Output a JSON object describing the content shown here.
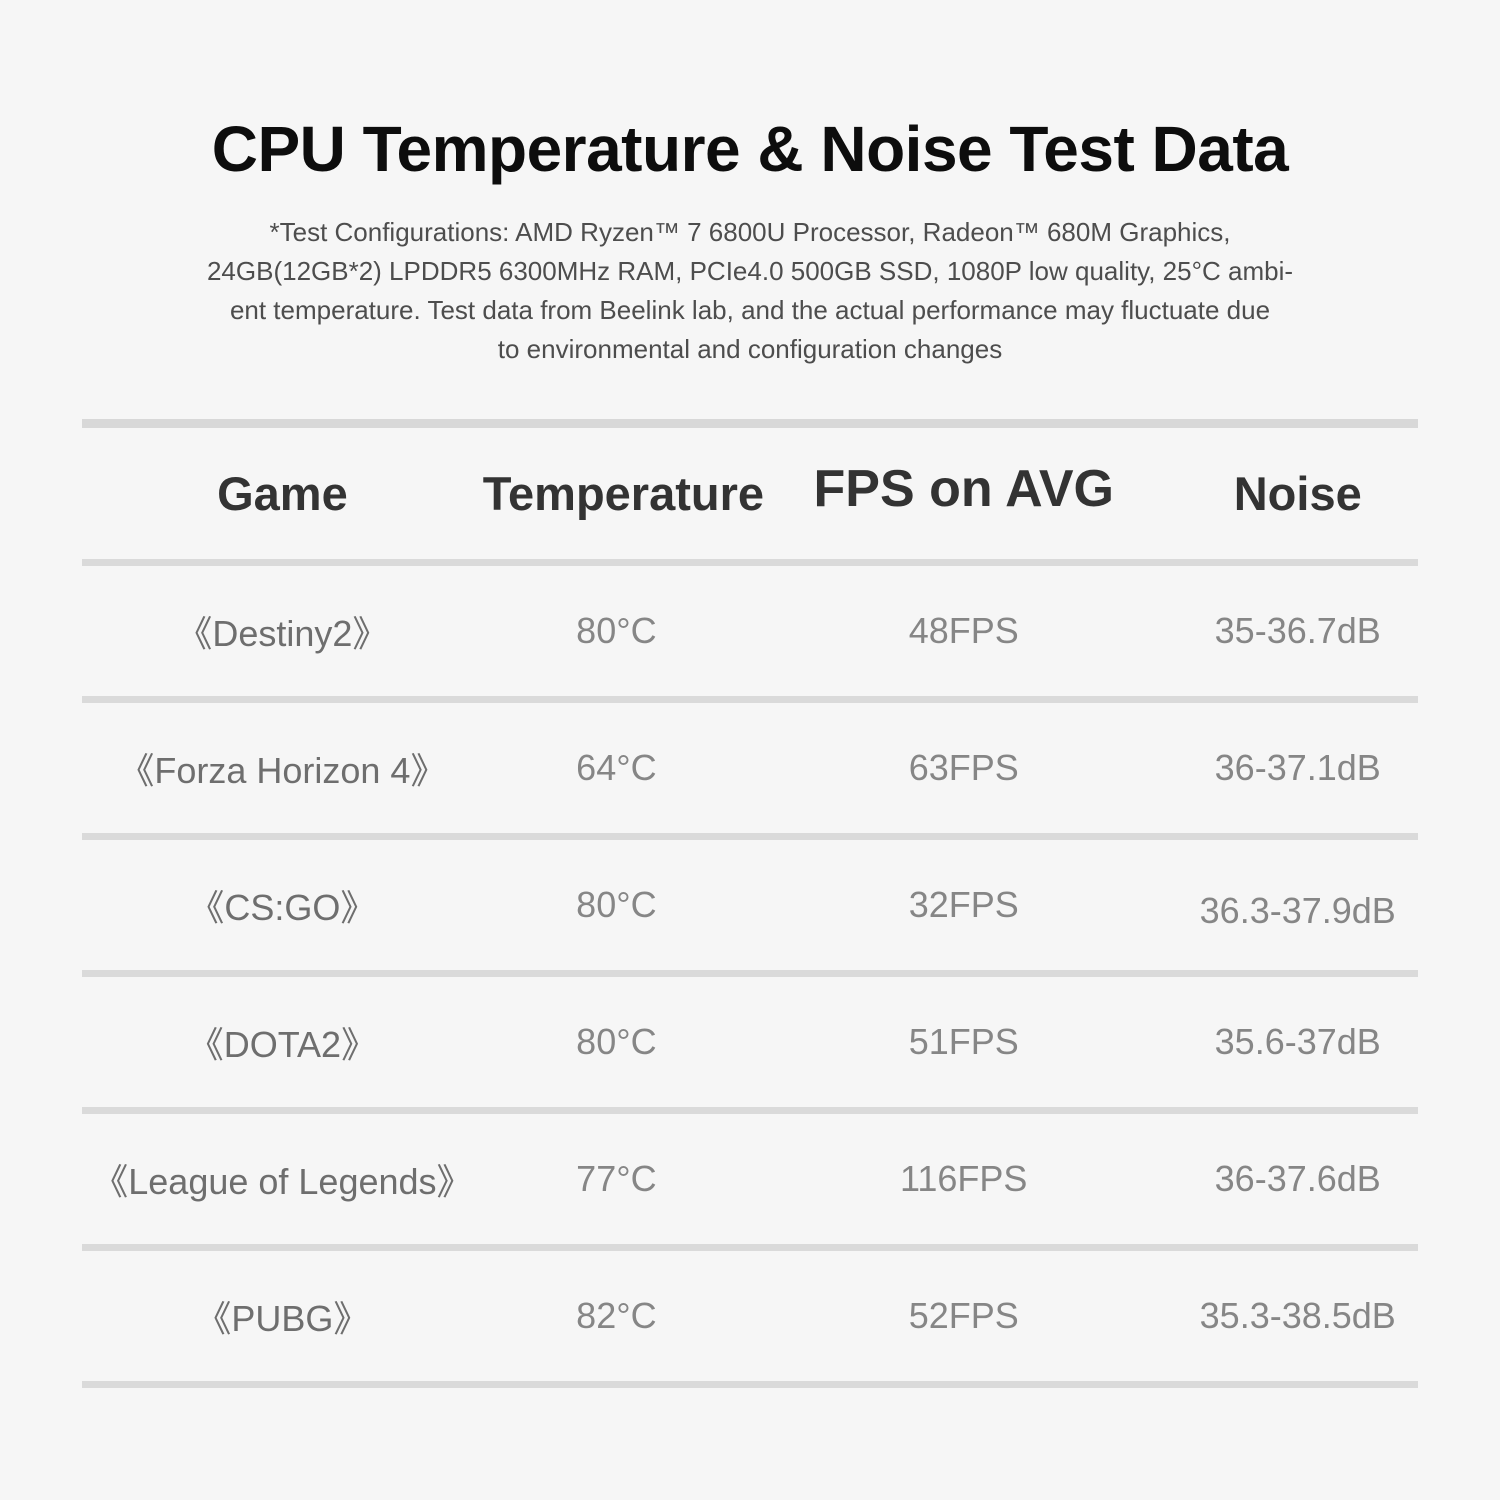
{
  "page": {
    "title": "CPU Temperature & Noise Test Data",
    "subtitle_lines": [
      "*Test Configurations: AMD Ryzen™ 7 6800U Processor, Radeon™ 680M Graphics,",
      "24GB(12GB*2) LPDDR5 6300MHz RAM, PCIe4.0 500GB SSD, 1080P low quality, 25°C ambi-",
      "ent temperature. Test data from Beelink lab, and the actual performance may fluctuate due",
      "to environmental and configuration changes"
    ]
  },
  "table": {
    "headers": [
      "Game",
      "Temperature",
      "FPS on AVG",
      "Noise"
    ],
    "rows": [
      {
        "game": "《Destiny2》",
        "temperature": "80°C",
        "fps": "48FPS",
        "noise": "35-36.7dB"
      },
      {
        "game": "《Forza Horizon 4》",
        "temperature": "64°C",
        "fps": "63FPS",
        "noise": "36-37.1dB"
      },
      {
        "game": "《CS:GO》",
        "temperature": "80°C",
        "fps": "32FPS",
        "noise": "36.3-37.9dB"
      },
      {
        "game": "《DOTA2》",
        "temperature": "80°C",
        "fps": "51FPS",
        "noise": "35.6-37dB"
      },
      {
        "game": "《League of Legends》",
        "temperature": "77°C",
        "fps": "116FPS",
        "noise": "36-37.6dB"
      },
      {
        "game": "《PUBG》",
        "temperature": "82°C",
        "fps": "52FPS",
        "noise": "35.3-38.5dB"
      }
    ]
  },
  "chart_data": {
    "type": "table",
    "title": "CPU Temperature & Noise Test Data",
    "columns": [
      "Game",
      "Temperature",
      "FPS on AVG",
      "Noise"
    ],
    "rows": [
      [
        "《Destiny2》",
        "80°C",
        "48FPS",
        "35-36.7dB"
      ],
      [
        "《Forza Horizon 4》",
        "64°C",
        "63FPS",
        "36-37.1dB"
      ],
      [
        "《CS:GO》",
        "80°C",
        "32FPS",
        "36.3-37.9dB"
      ],
      [
        "《DOTA2》",
        "80°C",
        "51FPS",
        "35.6-37dB"
      ],
      [
        "《League of Legends》",
        "77°C",
        "116FPS",
        "36-37.6dB"
      ],
      [
        "《PUBG》",
        "82°C",
        "52FPS",
        "35.3-38.5dB"
      ]
    ],
    "numeric": {
      "games": [
        "Destiny2",
        "Forza Horizon 4",
        "CS:GO",
        "DOTA2",
        "League of Legends",
        "PUBG"
      ],
      "temperature_c": [
        80,
        64,
        80,
        80,
        77,
        82
      ],
      "fps_avg": [
        48,
        63,
        32,
        51,
        116,
        52
      ],
      "noise_db_min": [
        35,
        36,
        36.3,
        35.6,
        36,
        35.3
      ],
      "noise_db_max": [
        36.7,
        37.1,
        37.9,
        37,
        37.6,
        38.5
      ]
    }
  },
  "colors": {
    "background": "#f6f6f6",
    "divider": "#dadada",
    "title_text": "#0d0d0d",
    "subtitle_text": "#4d4d4d",
    "header_text": "#333333",
    "cell_text": "#868686"
  }
}
